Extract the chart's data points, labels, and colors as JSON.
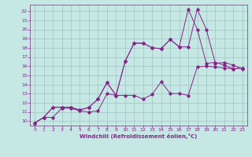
{
  "xlabel": "Windchill (Refroidissement éolien,°C)",
  "xlim": [
    -0.5,
    23.5
  ],
  "ylim": [
    9.5,
    22.7
  ],
  "xticks": [
    0,
    1,
    2,
    3,
    4,
    5,
    6,
    7,
    8,
    9,
    10,
    11,
    12,
    13,
    14,
    15,
    16,
    17,
    18,
    19,
    20,
    21,
    22,
    23
  ],
  "yticks": [
    10,
    11,
    12,
    13,
    14,
    15,
    16,
    17,
    18,
    19,
    20,
    21,
    22
  ],
  "bg_color": "#c5e8e5",
  "grid_color": "#a0c4c0",
  "line_color": "#882288",
  "line1_x": [
    0,
    1,
    2,
    3,
    4,
    5,
    6,
    7,
    8,
    9,
    10,
    11,
    12,
    13,
    14,
    15,
    16,
    17,
    18,
    19,
    20,
    21,
    22,
    23
  ],
  "line1_y": [
    9.8,
    10.4,
    10.4,
    11.4,
    11.4,
    11.1,
    11.0,
    11.1,
    13.0,
    12.8,
    12.8,
    12.8,
    12.4,
    12.9,
    14.3,
    13.0,
    13.0,
    12.8,
    15.9,
    16.0,
    15.9,
    15.8,
    15.7,
    15.8
  ],
  "line2_x": [
    0,
    1,
    2,
    3,
    4,
    5,
    6,
    7,
    8,
    9,
    10,
    11,
    12,
    13,
    14,
    15,
    16,
    17,
    18,
    19,
    20,
    21,
    22,
    23
  ],
  "line2_y": [
    9.8,
    10.4,
    11.5,
    11.5,
    11.5,
    11.2,
    11.5,
    12.4,
    14.2,
    12.8,
    16.5,
    18.5,
    18.5,
    18.0,
    17.9,
    18.9,
    18.1,
    18.1,
    22.2,
    20.0,
    16.3,
    16.4,
    16.1,
    15.7
  ],
  "line3_x": [
    0,
    1,
    2,
    3,
    4,
    5,
    6,
    7,
    8,
    9,
    10,
    11,
    12,
    13,
    14,
    15,
    16,
    17,
    18,
    19,
    20,
    21,
    22,
    23
  ],
  "line3_y": [
    9.8,
    10.4,
    11.5,
    11.5,
    11.5,
    11.2,
    11.5,
    12.4,
    14.2,
    12.8,
    16.5,
    18.5,
    18.5,
    18.0,
    17.9,
    18.9,
    18.1,
    22.2,
    20.0,
    16.3,
    16.4,
    16.1,
    15.7,
    15.8
  ]
}
